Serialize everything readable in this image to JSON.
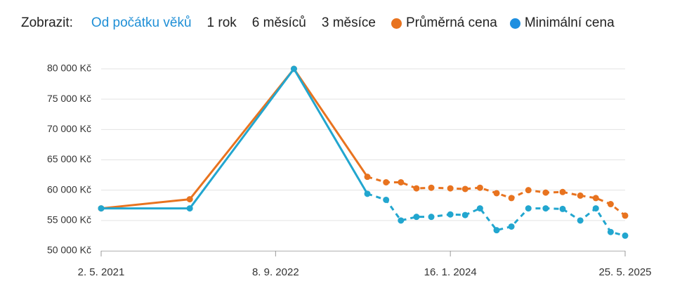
{
  "toolbar": {
    "label": "Zobrazit:",
    "ranges": [
      "Od počátku věků",
      "1 rok",
      "6 měsíců",
      "3 měsíce"
    ],
    "active_range": 0
  },
  "chart_data": {
    "type": "line",
    "x": [
      "2021-05-02",
      "2022-01-08",
      "2022-10-30",
      "2023-05-26",
      "2023-07-18",
      "2023-08-29",
      "2023-10-12",
      "2023-11-23",
      "2024-01-16",
      "2024-02-27",
      "2024-04-09",
      "2024-05-26",
      "2024-07-07",
      "2024-08-24",
      "2024-10-12",
      "2024-11-29",
      "2025-01-18",
      "2025-03-03",
      "2025-04-14",
      "2025-05-25"
    ],
    "series": [
      {
        "name": "Průměrná cena",
        "color": "#e8731f",
        "dashed_from": 3,
        "values": [
          57000,
          58500,
          80000,
          62200,
          61300,
          61300,
          60300,
          60400,
          60300,
          60200,
          60400,
          59500,
          58700,
          60000,
          59600,
          59700,
          59100,
          58700,
          57700,
          55800
        ]
      },
      {
        "name": "Minimální cena",
        "color": "#22a6cf",
        "legend_color": "#1e8fe0",
        "dashed_from": 3,
        "values": [
          57000,
          57000,
          80000,
          59400,
          58400,
          55000,
          55600,
          55600,
          56000,
          55900,
          57000,
          53400,
          54000,
          57000,
          57000,
          56900,
          55000,
          57000,
          53100,
          52500
        ]
      }
    ],
    "xlim": [
      "2021-05-02",
      "2025-05-25"
    ],
    "xticks": [
      {
        "value": "2021-05-02",
        "label": "2. 5. 2021"
      },
      {
        "value": "2022-09-08",
        "label": "8. 9. 2022"
      },
      {
        "value": "2024-01-16",
        "label": "16. 1. 2024"
      },
      {
        "value": "2025-05-25",
        "label": "25. 5. 2025"
      }
    ],
    "ylim": [
      50000,
      80000
    ],
    "yticks": [
      {
        "value": 50000,
        "label": "50 000 Kč"
      },
      {
        "value": 55000,
        "label": "55 000 Kč"
      },
      {
        "value": 60000,
        "label": "60 000 Kč"
      },
      {
        "value": 65000,
        "label": "65 000 Kč"
      },
      {
        "value": 70000,
        "label": "70 000 Kč"
      },
      {
        "value": 75000,
        "label": "75 000 Kč"
      },
      {
        "value": 80000,
        "label": "80 000 Kč"
      }
    ],
    "grid": true
  }
}
